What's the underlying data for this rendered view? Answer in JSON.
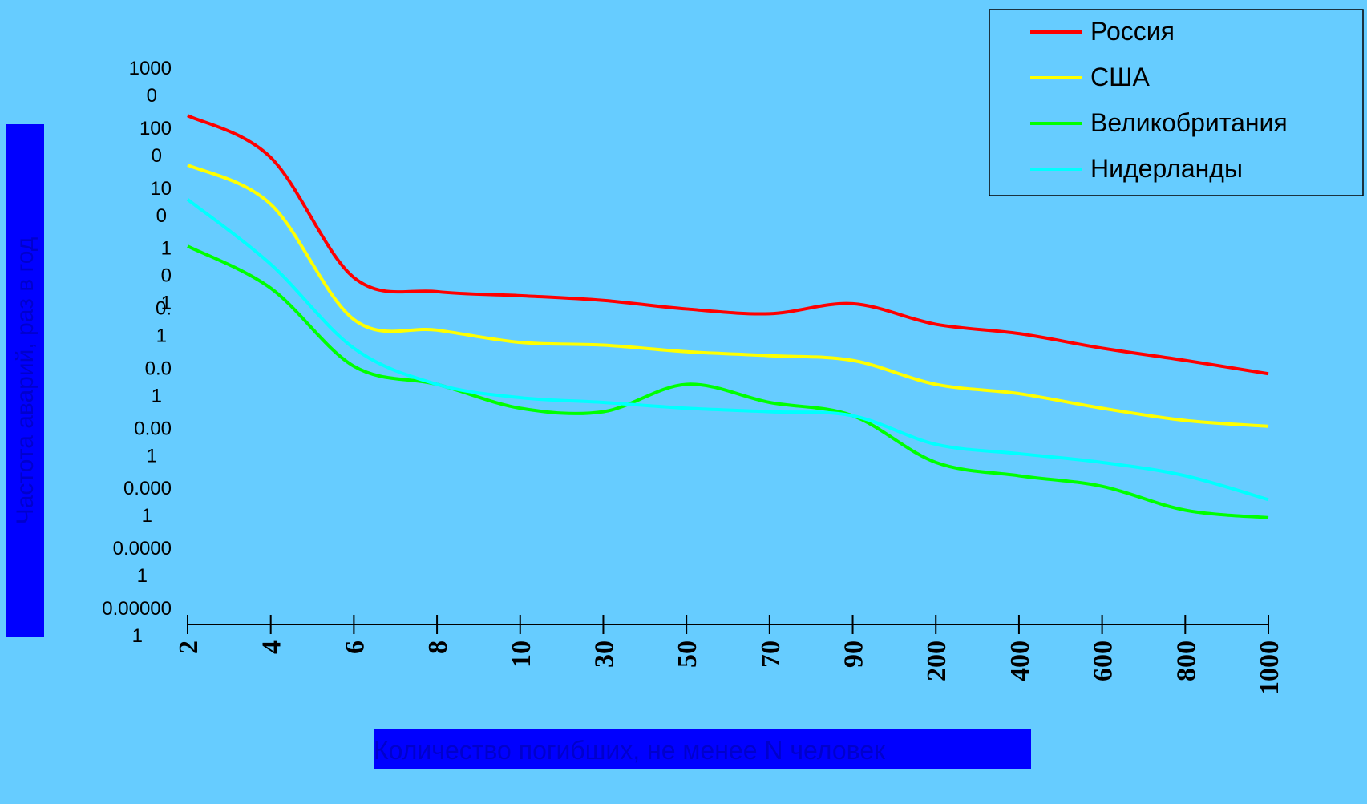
{
  "chart_data": {
    "type": "line",
    "title": "",
    "xlabel": "Количество погибших, не менее N человек",
    "ylabel": "Частота аварий, раз в год",
    "y_scale": "log",
    "ylim": [
      1e-06,
      1000
    ],
    "yticks": [
      1000,
      100,
      10,
      1,
      0.1,
      0.01,
      0.001,
      0.0001,
      1e-05,
      1e-06
    ],
    "ytick_labels": [
      "1000\n0",
      "100\n0",
      "10\n0",
      "1\n0\n1",
      "0.\n1",
      "0.0\n1",
      "0.00\n1",
      "0.000\n1",
      "0.0000\n1",
      "0.00000\n1"
    ],
    "categories": [
      "2",
      "4",
      "6",
      "8",
      "10",
      "30",
      "50",
      "70",
      "90",
      "200",
      "400",
      "600",
      "800",
      "1000"
    ],
    "legend_position": "top-right",
    "grid": false,
    "series": [
      {
        "name": "Россия",
        "color": "#ff0000",
        "values": [
          300,
          60,
          0.6,
          0.35,
          0.3,
          0.25,
          0.18,
          0.15,
          0.22,
          0.1,
          0.07,
          0.04,
          0.025,
          0.015
        ]
      },
      {
        "name": "США",
        "color": "#ffff00",
        "values": [
          45,
          10,
          0.12,
          0.08,
          0.05,
          0.045,
          0.035,
          0.03,
          0.025,
          0.01,
          0.007,
          0.004,
          0.0025,
          0.002
        ]
      },
      {
        "name": "Великобритания",
        "color": "#00ff00",
        "values": [
          2,
          0.4,
          0.02,
          0.01,
          0.004,
          0.0035,
          0.01,
          0.005,
          0.003,
          0.0005,
          0.0003,
          0.0002,
          8e-05,
          6e-05
        ]
      },
      {
        "name": "Нидерланды",
        "color": "#00ffff",
        "values": [
          12,
          1,
          0.04,
          0.01,
          0.006,
          0.005,
          0.004,
          0.0035,
          0.003,
          0.001,
          0.0007,
          0.0005,
          0.0003,
          0.00012
        ]
      }
    ]
  }
}
